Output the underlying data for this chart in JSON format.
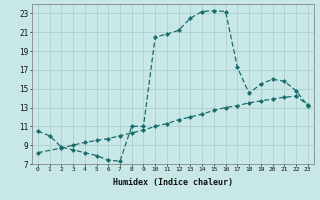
{
  "title": "",
  "xlabel": "Humidex (Indice chaleur)",
  "bg_color": "#c8e8e8",
  "grid_color": "#b0d0d0",
  "line_color": "#1a6b6b",
  "line1_x": [
    0,
    1,
    2,
    3,
    4,
    5,
    6,
    7,
    8,
    9,
    10,
    11,
    12,
    13,
    14,
    15,
    16,
    17,
    18,
    19,
    20,
    21,
    22,
    23
  ],
  "line1_y": [
    10.5,
    10.0,
    8.8,
    8.5,
    8.2,
    7.9,
    7.4,
    7.3,
    11.0,
    11.0,
    20.5,
    20.8,
    21.2,
    22.5,
    23.2,
    23.3,
    23.2,
    17.3,
    14.5,
    15.5,
    16.0,
    15.8,
    14.8,
    13.2
  ],
  "line2_x": [
    0,
    2,
    3,
    4,
    5,
    6,
    7,
    8,
    9,
    10,
    11,
    12,
    13,
    14,
    15,
    16,
    17,
    18,
    19,
    20,
    21,
    22,
    23
  ],
  "line2_y": [
    8.2,
    8.7,
    9.0,
    9.3,
    9.5,
    9.7,
    10.0,
    10.3,
    10.6,
    11.0,
    11.3,
    11.7,
    12.0,
    12.3,
    12.7,
    13.0,
    13.2,
    13.5,
    13.7,
    13.9,
    14.1,
    14.2,
    13.3
  ],
  "xlim": [
    -0.5,
    23.5
  ],
  "ylim": [
    7,
    24
  ],
  "yticks": [
    7,
    9,
    11,
    13,
    15,
    17,
    19,
    21,
    23
  ],
  "ytick_labels": [
    "7",
    "9",
    "11",
    "13",
    "15",
    "17",
    "19",
    "21",
    "23"
  ],
  "xticks": [
    0,
    1,
    2,
    3,
    4,
    5,
    6,
    7,
    8,
    9,
    10,
    11,
    12,
    13,
    14,
    15,
    16,
    17,
    18,
    19,
    20,
    21,
    22,
    23
  ],
  "figsize": [
    3.2,
    2.0
  ],
  "dpi": 100
}
